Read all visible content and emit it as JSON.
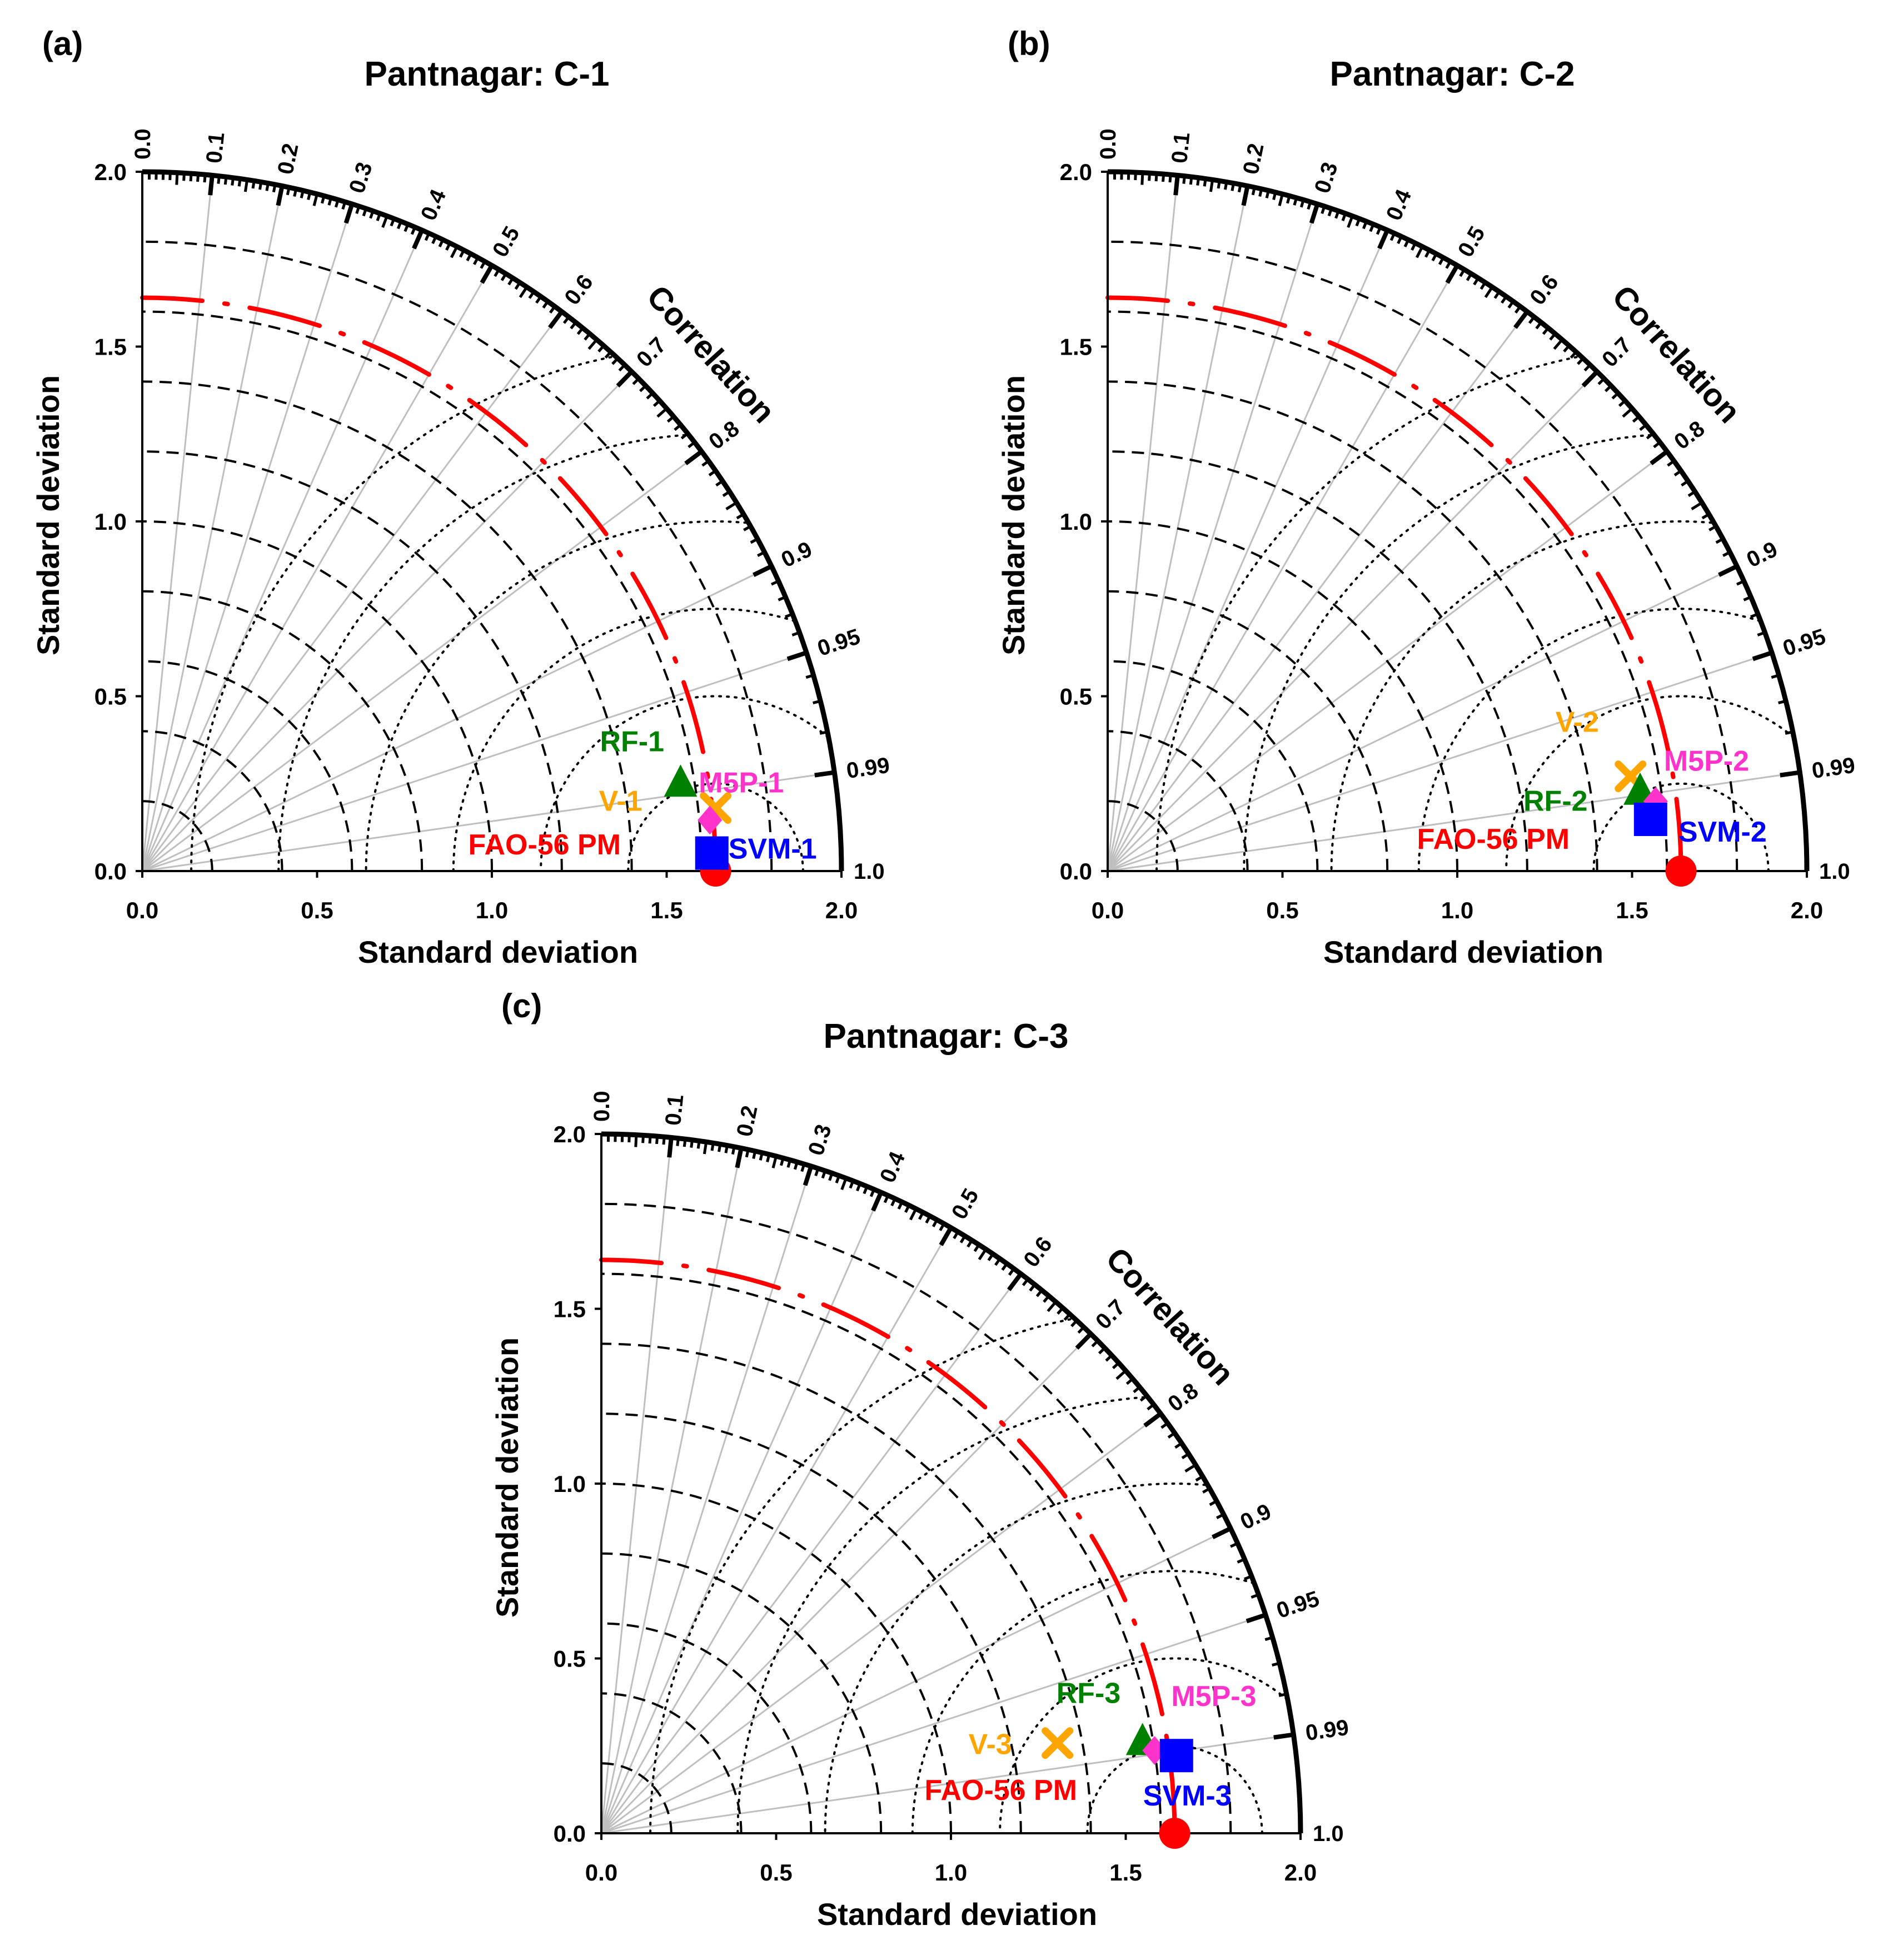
{
  "chart_data": [
    {
      "type": "taylor",
      "panel_label": "(a)",
      "title": "Pantnagar: C-1",
      "xlabel": "Standard deviation",
      "ylabel": "Standard deviation",
      "arc_label": "Correlation",
      "std_range": [
        0,
        2
      ],
      "std_ticks": [
        "0.0",
        "0.5",
        "1.0",
        "1.5",
        "2.0"
      ],
      "correlation_ticks": [
        "0.0",
        "0.1",
        "0.2",
        "0.3",
        "0.4",
        "0.5",
        "0.6",
        "0.7",
        "0.8",
        "0.9",
        "0.95",
        "0.99",
        "1.0"
      ],
      "reference": {
        "name": "FAO-56 PM",
        "std": 1.64,
        "correlation": 1.0,
        "color": "#ff0000"
      },
      "models": [
        {
          "name": "RF-1",
          "std": 1.56,
          "correlation": 0.987,
          "marker": "triangle",
          "color": "#008000"
        },
        {
          "name": "V-1",
          "std": 1.65,
          "correlation": 0.994,
          "marker": "x",
          "color": "#ffa500"
        },
        {
          "name": "M5P-1",
          "std": 1.63,
          "correlation": 0.996,
          "marker": "diamond",
          "color": "#ff33cc"
        },
        {
          "name": "SVM-1",
          "std": 1.63,
          "correlation": 0.9995,
          "marker": "square",
          "color": "#0000ff"
        }
      ]
    },
    {
      "type": "taylor",
      "panel_label": "(b)",
      "title": "Pantnagar: C-2",
      "xlabel": "Standard deviation",
      "ylabel": "Standard deviation",
      "arc_label": "Correlation",
      "std_range": [
        0,
        2
      ],
      "std_ticks": [
        "0.0",
        "0.5",
        "1.0",
        "1.5",
        "2.0"
      ],
      "correlation_ticks": [
        "0.0",
        "0.1",
        "0.2",
        "0.3",
        "0.4",
        "0.5",
        "0.6",
        "0.7",
        "0.8",
        "0.9",
        "0.95",
        "0.99",
        "1.0"
      ],
      "reference": {
        "name": "FAO-56 PM",
        "std": 1.64,
        "correlation": 1.0,
        "color": "#ff0000"
      },
      "models": [
        {
          "name": "V-2",
          "std": 1.52,
          "correlation": 0.984,
          "marker": "x",
          "color": "#ffa500"
        },
        {
          "name": "RF-2",
          "std": 1.54,
          "correlation": 0.989,
          "marker": "triangle",
          "color": "#008000"
        },
        {
          "name": "M5P-2",
          "std": 1.58,
          "correlation": 0.992,
          "marker": "diamond",
          "color": "#ff33cc"
        },
        {
          "name": "SVM-2",
          "std": 1.56,
          "correlation": 0.9955,
          "marker": "square",
          "color": "#0000ff"
        }
      ]
    },
    {
      "type": "taylor",
      "panel_label": "(c)",
      "title": "Pantnagar: C-3",
      "xlabel": "Standard deviation",
      "ylabel": "Standard deviation",
      "arc_label": "Correlation",
      "std_range": [
        0,
        2
      ],
      "std_ticks": [
        "0.0",
        "0.5",
        "1.0",
        "1.5",
        "2.0"
      ],
      "correlation_ticks": [
        "0.0",
        "0.1",
        "0.2",
        "0.3",
        "0.4",
        "0.5",
        "0.6",
        "0.7",
        "0.8",
        "0.9",
        "0.95",
        "0.99",
        "1.0"
      ],
      "reference": {
        "name": "FAO-56 PM",
        "std": 1.64,
        "correlation": 1.0,
        "color": "#ff0000"
      },
      "models": [
        {
          "name": "V-3",
          "std": 1.33,
          "correlation": 0.981,
          "marker": "x",
          "color": "#ffa500"
        },
        {
          "name": "RF-3",
          "std": 1.57,
          "correlation": 0.986,
          "marker": "triangle",
          "color": "#008000"
        },
        {
          "name": "M5P-3",
          "std": 1.6,
          "correlation": 0.989,
          "marker": "diamond",
          "color": "#ff33cc"
        },
        {
          "name": "SVM-3",
          "std": 1.66,
          "correlation": 0.991,
          "marker": "square",
          "color": "#0000ff"
        }
      ]
    }
  ]
}
